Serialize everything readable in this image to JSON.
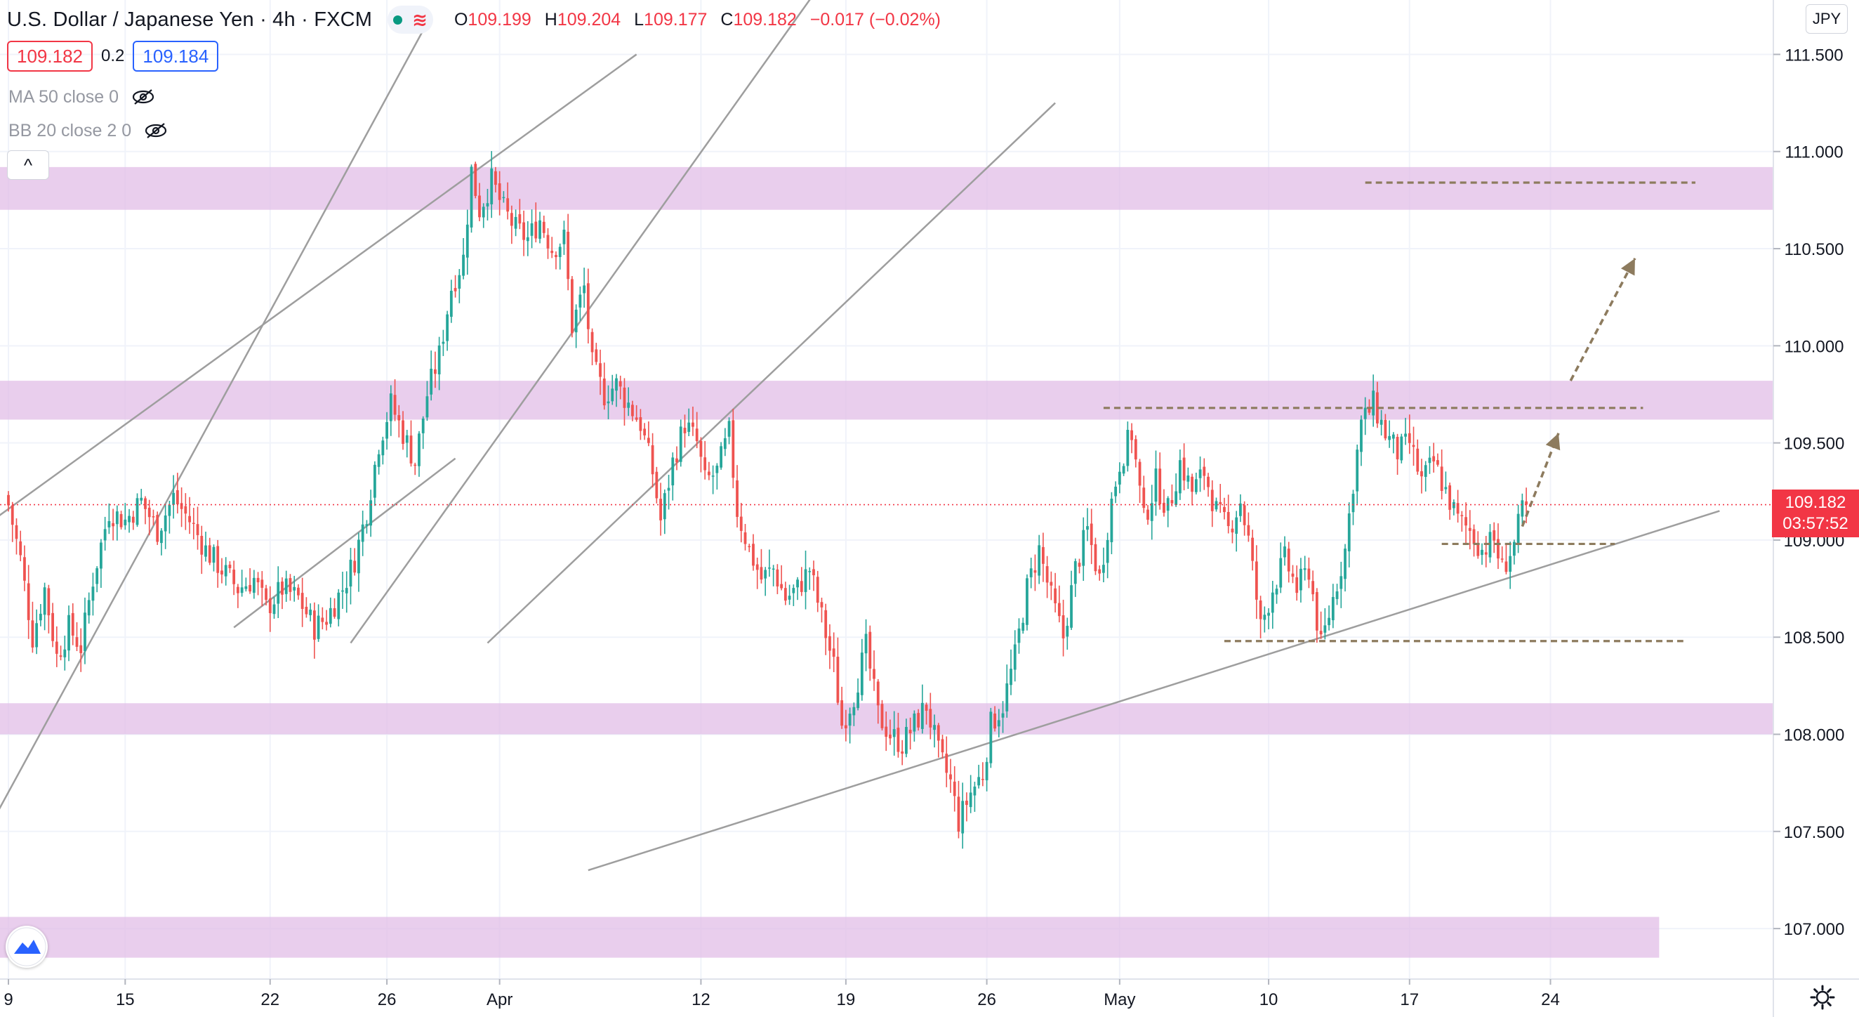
{
  "header": {
    "symbol": "U.S. Dollar / Japanese Yen · 4h · FXCM",
    "status_wave": "≋",
    "ohlc": {
      "open_label": "O",
      "open": "109.199",
      "high_label": "H",
      "high": "109.204",
      "low_label": "L",
      "low": "109.177",
      "close_label": "C",
      "close": "109.182",
      "change": "−0.017 (−0.02%)"
    }
  },
  "trade": {
    "sell": "109.182",
    "spread": "0.2",
    "buy": "109.184"
  },
  "indicators": [
    {
      "label": "MA 50 close 0"
    },
    {
      "label": "BB 20 close 2 0"
    }
  ],
  "collapse_glyph": "^",
  "currency": "JPY",
  "current_price": {
    "price": "109.182",
    "countdown": "03:57:52"
  },
  "colors": {
    "up": "#26a69a",
    "down": "#ef5350",
    "zone": "#e1bee7",
    "trendline": "#9e9e9e",
    "projection": "#8d7b5e",
    "price_line": "#f23645"
  },
  "icons": {
    "status": "market-open-dot",
    "indicator_visibility": "eye-off-icon",
    "logo": "tradingview-logo-icon",
    "settings": "gear-icon"
  },
  "chart_data": {
    "type": "candlestick",
    "timeframe": "4h",
    "ylim": [
      106.74,
      111.78
    ],
    "y_ticks": [
      "107.000",
      "107.500",
      "108.000",
      "108.500",
      "109.000",
      "109.500",
      "110.000",
      "110.500",
      "111.000",
      "111.500"
    ],
    "y_tick_values": [
      107.0,
      107.5,
      108.0,
      108.5,
      109.0,
      109.5,
      110.0,
      110.5,
      111.0,
      111.5
    ],
    "x_ticks": [
      {
        "label": "9",
        "index": 0
      },
      {
        "label": "15",
        "index": 29
      },
      {
        "label": "22",
        "index": 65
      },
      {
        "label": "26",
        "index": 94
      },
      {
        "label": "Apr",
        "index": 122
      },
      {
        "label": "12",
        "index": 172
      },
      {
        "label": "19",
        "index": 208
      },
      {
        "label": "26",
        "index": 243
      },
      {
        "label": "May",
        "index": 276
      },
      {
        "label": "10",
        "index": 313
      },
      {
        "label": "17",
        "index": 348
      },
      {
        "label": "24",
        "index": 383
      }
    ],
    "anchors": [
      [
        0,
        109.18
      ],
      [
        3,
        108.9
      ],
      [
        6,
        108.5
      ],
      [
        9,
        108.75
      ],
      [
        12,
        108.4
      ],
      [
        15,
        108.55
      ],
      [
        18,
        108.45
      ],
      [
        21,
        108.8
      ],
      [
        25,
        109.15
      ],
      [
        29,
        109.1
      ],
      [
        33,
        109.2
      ],
      [
        37,
        109.05
      ],
      [
        41,
        109.22
      ],
      [
        45,
        109.1
      ],
      [
        49,
        108.95
      ],
      [
        53,
        108.85
      ],
      [
        57,
        108.75
      ],
      [
        61,
        108.8
      ],
      [
        64,
        108.65
      ],
      [
        68,
        108.75
      ],
      [
        72,
        108.7
      ],
      [
        76,
        108.55
      ],
      [
        79,
        108.6
      ],
      [
        83,
        108.75
      ],
      [
        86,
        108.9
      ],
      [
        89,
        109.15
      ],
      [
        92,
        109.5
      ],
      [
        95,
        109.7
      ],
      [
        98,
        109.55
      ],
      [
        101,
        109.4
      ],
      [
        104,
        109.75
      ],
      [
        107,
        109.95
      ],
      [
        110,
        110.3
      ],
      [
        113,
        110.45
      ],
      [
        115,
        110.9
      ],
      [
        117,
        110.7
      ],
      [
        120,
        110.85
      ],
      [
        123,
        110.7
      ],
      [
        126,
        110.6
      ],
      [
        129,
        110.55
      ],
      [
        132,
        110.65
      ],
      [
        135,
        110.5
      ],
      [
        138,
        110.55
      ],
      [
        140,
        110.1
      ],
      [
        143,
        110.3
      ],
      [
        145,
        109.9
      ],
      [
        148,
        109.75
      ],
      [
        151,
        109.8
      ],
      [
        154,
        109.7
      ],
      [
        157,
        109.6
      ],
      [
        160,
        109.35
      ],
      [
        162,
        109.1
      ],
      [
        165,
        109.4
      ],
      [
        168,
        109.6
      ],
      [
        171,
        109.5
      ],
      [
        173,
        109.3
      ],
      [
        176,
        109.35
      ],
      [
        179,
        109.55
      ],
      [
        181,
        109.15
      ],
      [
        184,
        108.95
      ],
      [
        187,
        108.8
      ],
      [
        190,
        108.85
      ],
      [
        193,
        108.7
      ],
      [
        196,
        108.75
      ],
      [
        199,
        108.85
      ],
      [
        202,
        108.6
      ],
      [
        205,
        108.35
      ],
      [
        207,
        108.05
      ],
      [
        210,
        108.2
      ],
      [
        213,
        108.45
      ],
      [
        216,
        108.1
      ],
      [
        219,
        108.0
      ],
      [
        222,
        107.95
      ],
      [
        225,
        108.05
      ],
      [
        228,
        108.15
      ],
      [
        231,
        107.9
      ],
      [
        234,
        107.75
      ],
      [
        236,
        107.55
      ],
      [
        239,
        107.7
      ],
      [
        242,
        107.8
      ],
      [
        244,
        108.05
      ],
      [
        247,
        108.15
      ],
      [
        250,
        108.4
      ],
      [
        253,
        108.75
      ],
      [
        256,
        108.95
      ],
      [
        259,
        108.7
      ],
      [
        262,
        108.5
      ],
      [
        265,
        108.85
      ],
      [
        268,
        109.05
      ],
      [
        271,
        108.8
      ],
      [
        274,
        109.2
      ],
      [
        276,
        109.4
      ],
      [
        279,
        109.55
      ],
      [
        282,
        109.1
      ],
      [
        285,
        109.3
      ],
      [
        288,
        109.15
      ],
      [
        291,
        109.4
      ],
      [
        294,
        109.25
      ],
      [
        297,
        109.35
      ],
      [
        300,
        109.15
      ],
      [
        303,
        109.05
      ],
      [
        306,
        109.2
      ],
      [
        308,
        109.0
      ],
      [
        311,
        108.55
      ],
      [
        314,
        108.75
      ],
      [
        317,
        108.9
      ],
      [
        320,
        108.75
      ],
      [
        323,
        108.85
      ],
      [
        326,
        108.45
      ],
      [
        329,
        108.7
      ],
      [
        332,
        108.95
      ],
      [
        334,
        109.3
      ],
      [
        336,
        109.6
      ],
      [
        339,
        109.7
      ],
      [
        342,
        109.55
      ],
      [
        345,
        109.45
      ],
      [
        348,
        109.5
      ],
      [
        351,
        109.3
      ],
      [
        354,
        109.4
      ],
      [
        357,
        109.25
      ],
      [
        360,
        109.1
      ],
      [
        363,
        109.05
      ],
      [
        366,
        108.95
      ],
      [
        369,
        109.0
      ],
      [
        371,
        108.85
      ],
      [
        374,
        108.98
      ],
      [
        376,
        109.15
      ],
      [
        377,
        109.182
      ]
    ],
    "last_close": 109.182
  },
  "annotations": {
    "zones": [
      {
        "low": 110.7,
        "high": 110.92,
        "from": -3,
        "to": "end"
      },
      {
        "low": 109.62,
        "high": 109.82,
        "from": -3,
        "to": "end"
      },
      {
        "low": 108.0,
        "high": 108.16,
        "from": -3,
        "to": "end"
      },
      {
        "low": 106.85,
        "high": 107.06,
        "from": -3,
        "to": 410
      }
    ],
    "trendlines": [
      {
        "from": [
          -4,
          107.55
        ],
        "to": [
          105,
          111.7
        ]
      },
      {
        "from": [
          -4,
          109.1
        ],
        "to": [
          156,
          111.5
        ]
      },
      {
        "from": [
          56,
          108.55
        ],
        "to": [
          111,
          109.42
        ]
      },
      {
        "from": [
          85,
          108.47
        ],
        "to": [
          210,
          112.1
        ]
      },
      {
        "from": [
          119,
          108.47
        ],
        "to": [
          260,
          111.25
        ]
      },
      {
        "from": [
          144,
          107.3
        ],
        "to": [
          425,
          109.15
        ]
      }
    ],
    "dashed_levels": [
      {
        "price": 110.84,
        "from": 337,
        "to": 419
      },
      {
        "price": 109.68,
        "from": 272,
        "to": 406
      },
      {
        "price": 108.98,
        "from": 356,
        "to": 399
      },
      {
        "price": 108.48,
        "from": 302,
        "to": 416
      }
    ],
    "arrows": [
      {
        "from": [
          388,
          109.82
        ],
        "to": [
          404,
          110.45
        ]
      },
      {
        "from": [
          376,
          109.07
        ],
        "to": [
          385,
          109.55
        ]
      }
    ]
  }
}
